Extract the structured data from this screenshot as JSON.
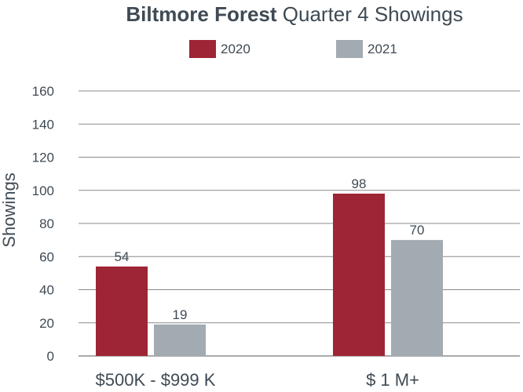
{
  "chart_data": {
    "type": "bar",
    "title_bold": "Biltmore Forest",
    "title_rest": " Quarter 4 Showings",
    "ylabel": "Showings",
    "xlabel": "",
    "categories": [
      "$500K - $999 K",
      "$ 1 M+"
    ],
    "series": [
      {
        "name": "2020",
        "color": "#9e2535",
        "values": [
          54,
          98
        ]
      },
      {
        "name": "2021",
        "color": "#a2abb1",
        "values": [
          19,
          70
        ]
      }
    ],
    "ylim": [
      0,
      160
    ],
    "yticks": [
      "0",
      "20",
      "40",
      "60",
      "80",
      "100",
      "120",
      "140",
      "160"
    ],
    "grid": true,
    "legend_position": "top-center"
  }
}
